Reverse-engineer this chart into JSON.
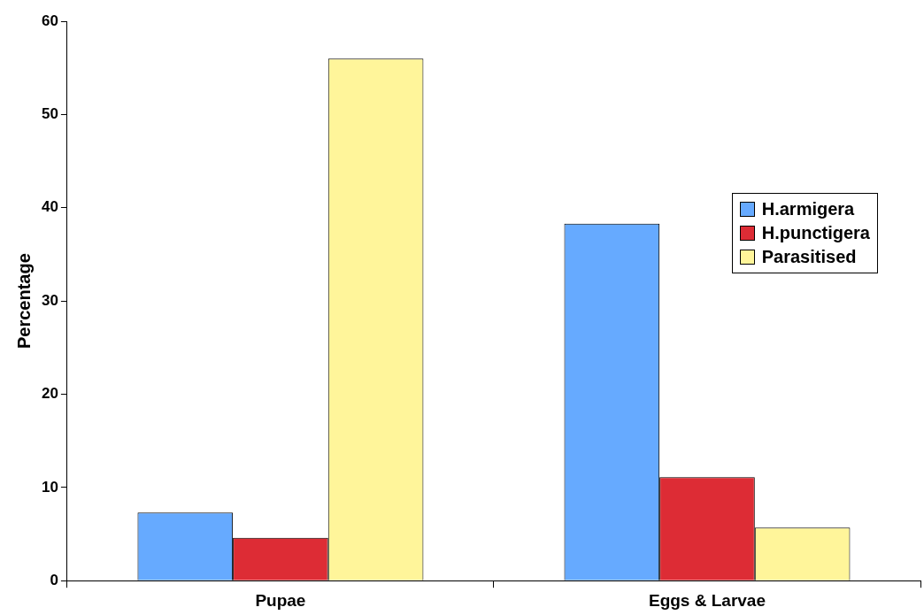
{
  "chart_data": {
    "type": "bar",
    "ylabel": "Percentage",
    "categories": [
      "Pupae",
      "Eggs & Larvae"
    ],
    "series": [
      {
        "name": "H.armigera",
        "color": "#66aaff",
        "values": [
          7.3,
          38.3
        ]
      },
      {
        "name": "H.punctigera",
        "color": "#dd2c35",
        "values": [
          4.6,
          11.1
        ]
      },
      {
        "name": "Parasitised",
        "color": "#fff59a",
        "values": [
          56,
          5.7
        ]
      }
    ],
    "ylim": [
      0,
      60
    ],
    "yticks": [
      0,
      10,
      20,
      30,
      40,
      50,
      60
    ],
    "grid": false,
    "legend": "right"
  }
}
